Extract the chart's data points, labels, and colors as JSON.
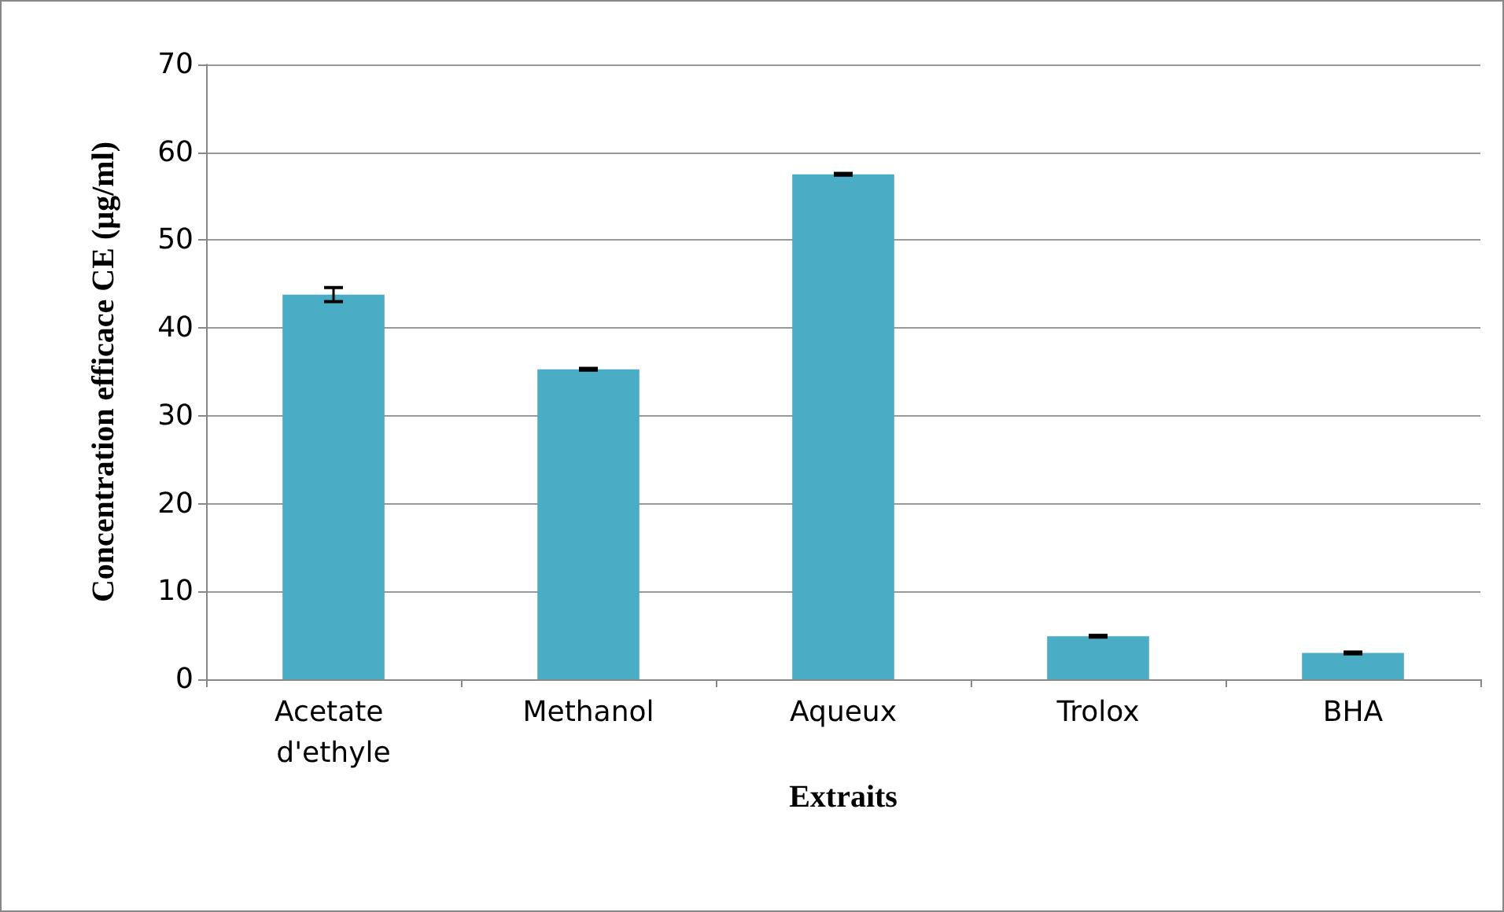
{
  "chart_data": {
    "type": "bar",
    "xlabel": "Extraits",
    "ylabel": "Concentration efficace CE (µg/ml)",
    "categories": [
      "Acetate d'ethyle",
      "Methanol",
      "Aqueux",
      "Trolox",
      "BHA"
    ],
    "values": [
      43.8,
      35.3,
      57.5,
      4.9,
      3.0
    ],
    "errors": [
      0.8,
      0.1,
      0.1,
      0.1,
      0.1
    ],
    "color": "#4bacc6",
    "ylim": [
      0,
      70
    ],
    "yticks": [
      0,
      10,
      20,
      30,
      40,
      50,
      60,
      70
    ],
    "grid": "y"
  }
}
